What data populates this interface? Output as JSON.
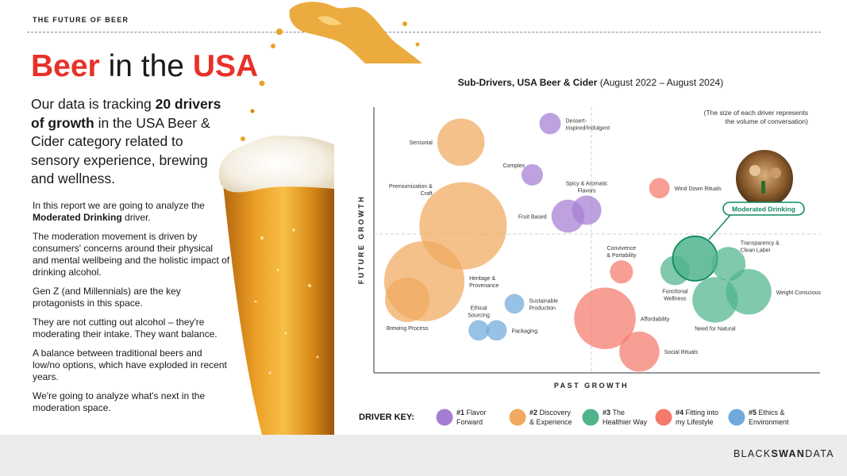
{
  "header": {
    "kicker": "THE FUTURE OF BEER",
    "brand_a": "BLACK",
    "brand_b": "SWAN",
    "brand_c": "DATA"
  },
  "headline": {
    "w1": "Beer",
    "w2": " in the ",
    "w3": "USA"
  },
  "lead": {
    "t1": "Our data is tracking ",
    "b1": "20 drivers of growth",
    "t2": " in the USA Beer & Cider category related to sensory experience, brewing and wellness."
  },
  "body": {
    "p1a": "In this report we are going to analyze the ",
    "p1b": "Moderated Drinking",
    "p1c": " driver.",
    "p2": "The moderation movement is driven by consumers' concerns around their physical and mental wellbeing and the holistic impact of drinking alcohol.",
    "p3": "Gen Z (and Millennials) are the key protagonists in this space.",
    "p4": "They are not cutting out alcohol – they're moderating their intake. They want balance.",
    "p5": "A balance between traditional beers and low/no options, which have exploded in recent years.",
    "p6": "We're going to analyze what's next in the moderation space."
  },
  "chart_data": {
    "type": "scatter",
    "title_bold": "Sub-Drivers, USA Beer & Cider",
    "title_rest": " (August 2022 – August 2024)",
    "note": [
      "(The size of each driver represents",
      "the volume of conversation)"
    ],
    "xlabel": "PAST GROWTH",
    "ylabel": "FUTURE GROWTH",
    "xlim": [
      0,
      100
    ],
    "ylim": [
      0,
      100
    ],
    "highlight": "Moderated Drinking",
    "groups": [
      {
        "id": 1,
        "num": "#1",
        "l1": "Flavor",
        "l2": "Forward",
        "color": "#a57ed3"
      },
      {
        "id": 2,
        "num": "#2",
        "l1": "Discovery",
        "l2": "& Experience",
        "color": "#f0a95e"
      },
      {
        "id": 3,
        "num": "#3",
        "l1": "The",
        "l2": "Healthier Way",
        "color": "#4fb48c"
      },
      {
        "id": 4,
        "num": "#4",
        "l1": "Fitting into",
        "l2": "my Lifestyle",
        "color": "#f57a6c"
      },
      {
        "id": 5,
        "num": "#5",
        "l1": "Ethics &",
        "l2": "Environment",
        "color": "#6fa9db"
      }
    ],
    "legend_title": "DRIVER KEY:",
    "bubbles": [
      {
        "name": "Dessert-Inspired/Indulgent",
        "label": [
          "Dessert-",
          "Inspired/Indulgent"
        ],
        "group": 1,
        "x": 39.5,
        "y": 93.8,
        "size": 2.4,
        "lpos": "right"
      },
      {
        "name": "Complex",
        "label": [
          "Complex"
        ],
        "group": 1,
        "x": 35.5,
        "y": 74.5,
        "size": 2.4,
        "lpos": "tl"
      },
      {
        "name": "Spicy & Aromatic Flavors",
        "label": [
          "Spicy & Aromatic",
          "Flavors"
        ],
        "group": 1,
        "x": 47.7,
        "y": 61.2,
        "size": 3.3,
        "lpos": "above"
      },
      {
        "name": "Fruit Based",
        "label": [
          "Fruit Based"
        ],
        "group": 1,
        "x": 43.5,
        "y": 59.0,
        "size": 3.7,
        "lpos": "left"
      },
      {
        "name": "Sensorial",
        "label": [
          "Sensorial"
        ],
        "group": 2,
        "x": 19.5,
        "y": 86.8,
        "size": 5.3,
        "lpos": "left"
      },
      {
        "name": "Premiumization & Craft",
        "label": [
          "Premiumization &",
          "Craft"
        ],
        "group": 2,
        "x": 20.0,
        "y": 55.3,
        "size": 9.8,
        "lpos": "tl"
      },
      {
        "name": "Heritage & Provenance",
        "label": [
          "Heritage &",
          "Provenance"
        ],
        "group": 2,
        "x": 11.3,
        "y": 34.5,
        "size": 9.0,
        "lpos": "right"
      },
      {
        "name": "Brewing Process",
        "label": [
          "Brewing Process"
        ],
        "group": 2,
        "x": 7.5,
        "y": 27.5,
        "size": 5.0,
        "lpos": "below"
      },
      {
        "name": "Functional Wellness",
        "label": [
          "Functional",
          "Wellness"
        ],
        "group": 3,
        "x": 67.5,
        "y": 38.5,
        "size": 3.3,
        "lpos": "below"
      },
      {
        "name": "Moderated Drinking",
        "label": [
          "Moderated Drinking"
        ],
        "group": 3,
        "x": 72.0,
        "y": 43.0,
        "size": 5.0,
        "lpos": "callout"
      },
      {
        "name": "Transparency & Clean Label",
        "label": [
          "Transparency &",
          "Clean Label"
        ],
        "group": 3,
        "x": 79.5,
        "y": 41.0,
        "size": 3.8,
        "lpos": "tr"
      },
      {
        "name": "Need for Natural",
        "label": [
          "Need for Natural"
        ],
        "group": 3,
        "x": 76.5,
        "y": 27.5,
        "size": 5.1,
        "lpos": "below"
      },
      {
        "name": "Weight Conscious",
        "label": [
          "Weight Conscious"
        ],
        "group": 3,
        "x": 84.0,
        "y": 30.5,
        "size": 5.1,
        "lpos": "right"
      },
      {
        "name": "Wind Down Rituals",
        "label": [
          "Wind Down Rituals"
        ],
        "group": 4,
        "x": 64.0,
        "y": 69.5,
        "size": 2.3,
        "lpos": "right"
      },
      {
        "name": "Convivence & Portability",
        "label": [
          "Convivence",
          "&  Portability"
        ],
        "group": 4,
        "x": 55.5,
        "y": 38.0,
        "size": 2.6,
        "lpos": "above"
      },
      {
        "name": "Affordability",
        "label": [
          "Affordability"
        ],
        "group": 4,
        "x": 51.8,
        "y": 20.5,
        "size": 6.9,
        "lpos": "right"
      },
      {
        "name": "Social Rituals",
        "label": [
          "Social Rituals"
        ],
        "group": 4,
        "x": 59.5,
        "y": 8.0,
        "size": 4.5,
        "lpos": "right"
      },
      {
        "name": "Sustainable Production",
        "label": [
          "Sustainable",
          "Production"
        ],
        "group": 5,
        "x": 31.5,
        "y": 26.0,
        "size": 2.2,
        "lpos": "right"
      },
      {
        "name": "Ethical Sourcing",
        "label": [
          "Ethical",
          "Sourcing"
        ],
        "group": 5,
        "x": 23.5,
        "y": 16.0,
        "size": 2.3,
        "lpos": "above"
      },
      {
        "name": "Packaging",
        "label": [
          "Packaging"
        ],
        "group": 5,
        "x": 27.5,
        "y": 16.0,
        "size": 2.3,
        "lpos": "right"
      }
    ]
  }
}
